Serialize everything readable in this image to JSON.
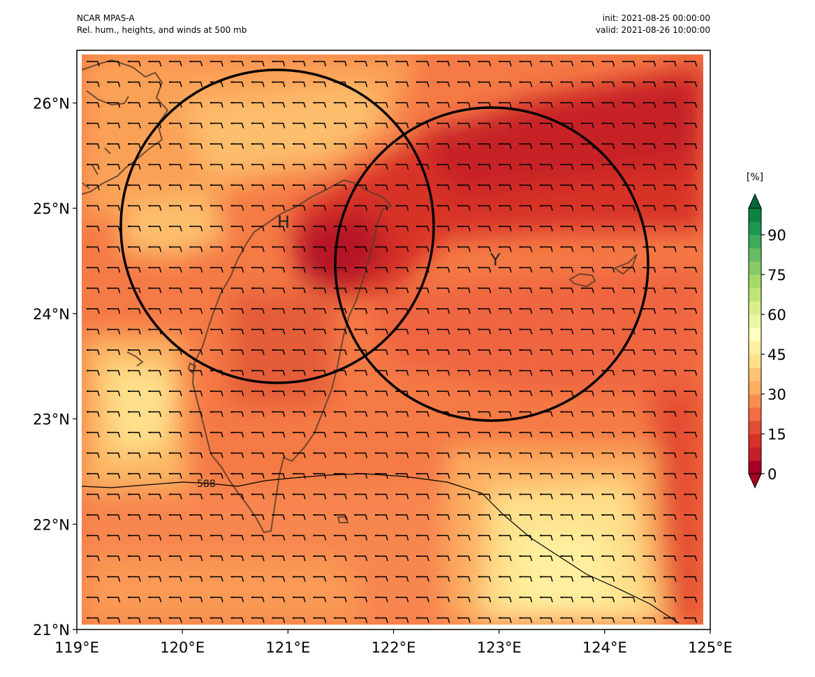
{
  "header": {
    "model": "NCAR MPAS-A",
    "field": "Rel. hum., heights, and winds at 500 mb",
    "init": "init: 2021-08-25 00:00:00",
    "valid": "valid: 2021-08-26 10:00:00"
  },
  "map": {
    "lon_range": [
      119,
      125
    ],
    "lat_range": [
      21,
      26.5
    ],
    "x_ticks": [
      "119°E",
      "120°E",
      "121°E",
      "122°E",
      "123°E",
      "124°E",
      "125°E"
    ],
    "y_ticks": [
      "21°N",
      "22°N",
      "23°N",
      "24°N",
      "25°N",
      "26°N"
    ],
    "colormap": "RdYlGn",
    "storm_markers": [
      {
        "label": "H",
        "lon": 120.95,
        "lat": 24.85
      },
      {
        "label": "Y",
        "lon": 122.95,
        "lat": 24.45
      }
    ],
    "circles_degrees_radius": 1.35,
    "height_contour": {
      "label": "588",
      "color": "#000000"
    },
    "wind_barbs": "uniform easterly barbs across the domain"
  },
  "colorbar": {
    "unit": "[%]",
    "tick_labels": [
      "0",
      "15",
      "30",
      "45",
      "60",
      "75",
      "90"
    ],
    "levels": [
      0,
      5,
      10,
      15,
      20,
      25,
      30,
      35,
      40,
      45,
      50,
      55,
      60,
      65,
      70,
      75,
      80,
      85,
      90,
      95,
      100
    ],
    "colors": [
      "#a50026",
      "#c41e27",
      "#d73027",
      "#e44d33",
      "#f46d43",
      "#f88d52",
      "#fdae61",
      "#fdc374",
      "#fee08b",
      "#ffefa0",
      "#ffffbf",
      "#ecf7a5",
      "#d9ef8b",
      "#bfe47a",
      "#a6d96a",
      "#86cb66",
      "#66bd63",
      "#3faa59",
      "#1a9850",
      "#0a8343",
      "#006837"
    ]
  }
}
